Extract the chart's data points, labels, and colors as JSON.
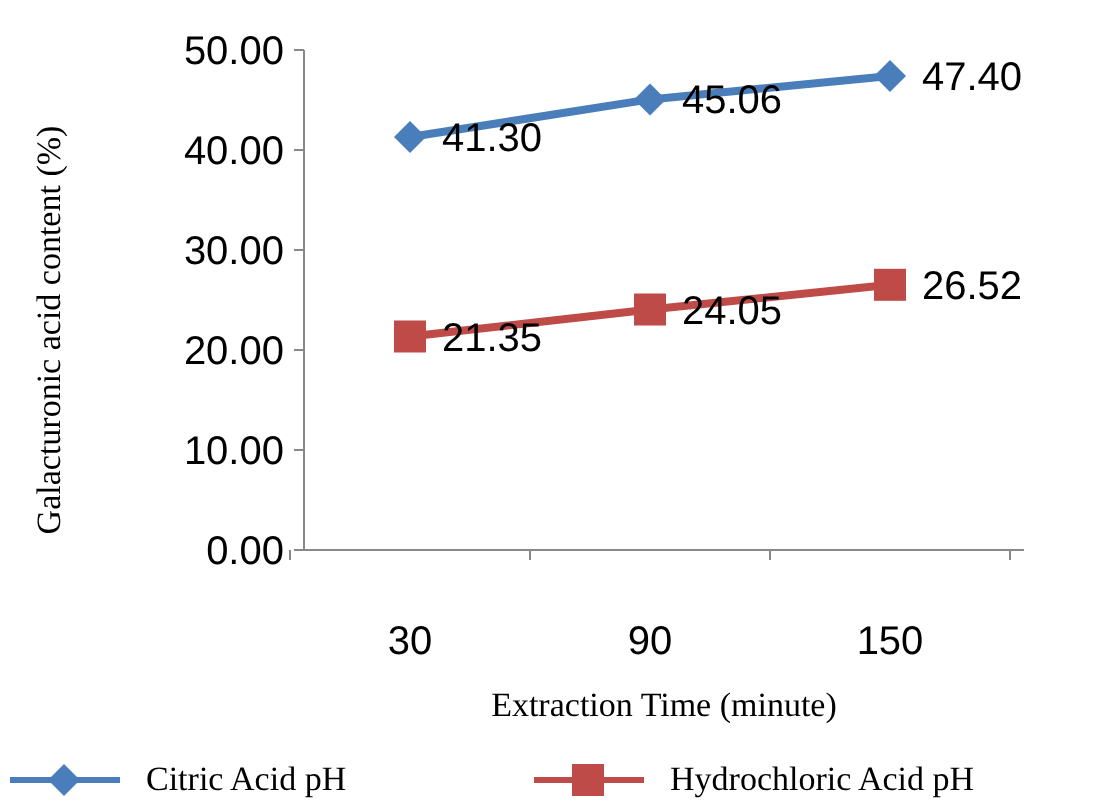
{
  "chart_data": {
    "type": "line",
    "xlabel": "Extraction Time (minute)",
    "ylabel": "Galacturonic acid content   (%)",
    "categories": [
      "30",
      "90",
      "150"
    ],
    "series": [
      {
        "name": "Citric Acid pH",
        "color": "#4a7ebb",
        "marker": "diamond",
        "values": [
          41.3,
          45.06,
          47.4
        ],
        "value_labels": [
          "41.30",
          "45.06",
          "47.40"
        ]
      },
      {
        "name": "Hydrochloric Acid pH",
        "color": "#be4b48",
        "marker": "square",
        "values": [
          21.35,
          24.05,
          26.52
        ],
        "value_labels": [
          "21.35",
          "24.05",
          "26.52"
        ]
      }
    ],
    "ylim": [
      0,
      50
    ],
    "yticks": [
      {
        "value": 0,
        "label": "0.00"
      },
      {
        "value": 10,
        "label": "10.00"
      },
      {
        "value": 20,
        "label": "20.00"
      },
      {
        "value": 30,
        "label": "30.00"
      },
      {
        "value": 40,
        "label": "40.00"
      },
      {
        "value": 50,
        "label": "50.00"
      }
    ],
    "grid": false,
    "legend": "bottom"
  }
}
